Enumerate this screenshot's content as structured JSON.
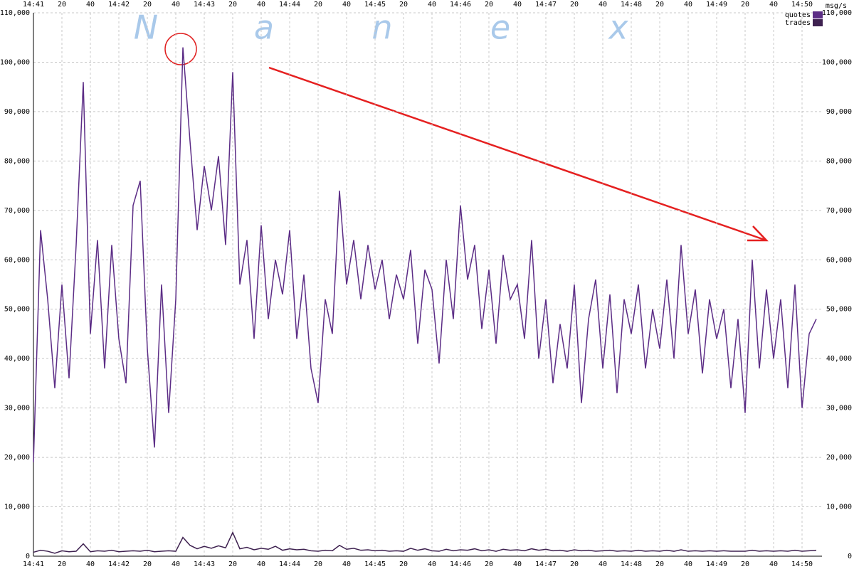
{
  "chart_data": {
    "type": "line",
    "y_label": "msg/s",
    "watermark": [
      "N",
      "a",
      "n",
      "e",
      "x"
    ],
    "x": [
      0,
      5,
      10,
      15,
      20,
      25,
      30,
      35,
      40,
      45,
      50,
      55,
      60,
      65,
      70,
      75,
      80,
      85,
      90,
      95,
      100,
      105,
      110,
      115,
      120,
      125,
      130,
      135,
      140,
      145,
      150,
      155,
      160,
      165,
      170,
      175,
      180,
      185,
      190,
      195,
      200,
      205,
      210,
      215,
      220,
      225,
      230,
      235,
      240,
      245,
      250,
      255,
      260,
      265,
      270,
      275,
      280,
      285,
      290,
      295,
      300,
      305,
      310,
      315,
      320,
      325,
      330,
      335,
      340,
      345,
      350,
      355,
      360,
      365,
      370,
      375,
      380,
      385,
      390,
      395,
      400,
      405,
      410,
      415,
      420,
      425,
      430,
      435,
      440,
      445,
      450,
      455,
      460,
      465,
      470,
      475,
      480,
      485,
      490,
      495,
      500,
      505,
      510,
      515,
      520,
      525,
      530,
      535,
      540,
      545,
      550
    ],
    "xlim": [
      0,
      554
    ],
    "xticks": [
      {
        "value": 0,
        "label": "14:41"
      },
      20,
      40,
      {
        "value": 60,
        "label": "14:42"
      },
      {
        "value": 80,
        "label": "20"
      },
      {
        "value": 100,
        "label": "40"
      },
      {
        "value": 120,
        "label": "14:43"
      },
      {
        "value": 140,
        "label": "20"
      },
      {
        "value": 160,
        "label": "40"
      },
      {
        "value": 180,
        "label": "14:44"
      },
      {
        "value": 200,
        "label": "20"
      },
      {
        "value": 220,
        "label": "40"
      },
      {
        "value": 240,
        "label": "14:45"
      },
      {
        "value": 260,
        "label": "20"
      },
      {
        "value": 280,
        "label": "40"
      },
      {
        "value": 300,
        "label": "14:46"
      },
      {
        "value": 320,
        "label": "20"
      },
      {
        "value": 340,
        "label": "40"
      },
      {
        "value": 360,
        "label": "14:47"
      },
      {
        "value": 380,
        "label": "20"
      },
      {
        "value": 400,
        "label": "40"
      },
      {
        "value": 420,
        "label": "14:48"
      },
      {
        "value": 440,
        "label": "20"
      },
      {
        "value": 460,
        "label": "40"
      },
      {
        "value": 480,
        "label": "14:49"
      },
      {
        "value": 500,
        "label": "20"
      },
      {
        "value": 520,
        "label": "40"
      },
      {
        "value": 540,
        "label": "14:50"
      }
    ],
    "ylim": [
      0,
      110000
    ],
    "yticks": [
      0,
      {
        "value": 10000,
        "label": "10,000"
      },
      {
        "value": 20000,
        "label": "20,000"
      },
      {
        "value": 30000,
        "label": "30,000"
      },
      {
        "value": 40000,
        "label": "40,000"
      },
      {
        "value": 50000,
        "label": "50,000"
      },
      {
        "value": 60000,
        "label": "60,000"
      },
      {
        "value": 70000,
        "label": "70,000"
      },
      {
        "value": 80000,
        "label": "80,000"
      },
      {
        "value": 90000,
        "label": "90,000"
      },
      {
        "value": 100000,
        "label": "100,000"
      },
      {
        "value": 110000,
        "label": "110,000"
      }
    ],
    "grid": true,
    "legend": "top-right",
    "series": [
      {
        "name": "quotes",
        "color": "#5c2d86",
        "values": [
          19000,
          66000,
          52000,
          34000,
          55000,
          36000,
          63000,
          96000,
          45000,
          64000,
          38000,
          63000,
          44000,
          35000,
          71000,
          76000,
          42000,
          22000,
          55000,
          29000,
          52000,
          103000,
          84000,
          66000,
          79000,
          70000,
          81000,
          63000,
          98000,
          55000,
          64000,
          44000,
          67000,
          48000,
          60000,
          53000,
          66000,
          44000,
          57000,
          38000,
          31000,
          52000,
          45000,
          74000,
          55000,
          64000,
          52000,
          63000,
          54000,
          60000,
          48000,
          57000,
          52000,
          62000,
          43000,
          58000,
          54000,
          39000,
          60000,
          48000,
          71000,
          56000,
          63000,
          46000,
          58000,
          43000,
          61000,
          52000,
          55000,
          44000,
          64000,
          40000,
          52000,
          35000,
          47000,
          38000,
          55000,
          31000,
          48000,
          56000,
          38000,
          53000,
          33000,
          52000,
          45000,
          55000,
          38000,
          50000,
          42000,
          56000,
          40000,
          63000,
          45000,
          54000,
          37000,
          52000,
          44000,
          50000,
          34000,
          48000,
          29000,
          60000,
          38000,
          54000,
          40000,
          52000,
          34000,
          55000,
          30000,
          45000,
          48000
        ]
      },
      {
        "name": "trades",
        "color": "#3e2150",
        "values": [
          800,
          1200,
          1000,
          600,
          1100,
          900,
          1000,
          2500,
          900,
          1100,
          1000,
          1200,
          900,
          1000,
          1100,
          1000,
          1200,
          900,
          1000,
          1100,
          1000,
          3800,
          2200,
          1500,
          2000,
          1600,
          2100,
          1700,
          4800,
          1500,
          1800,
          1300,
          1600,
          1400,
          2000,
          1200,
          1500,
          1300,
          1400,
          1100,
          1000,
          1200,
          1100,
          2200,
          1400,
          1600,
          1200,
          1300,
          1100,
          1200,
          1000,
          1100,
          1000,
          1600,
          1200,
          1500,
          1100,
          1000,
          1400,
          1100,
          1300,
          1200,
          1500,
          1100,
          1300,
          1000,
          1400,
          1200,
          1300,
          1100,
          1500,
          1200,
          1400,
          1100,
          1200,
          1000,
          1300,
          1100,
          1200,
          1000,
          1100,
          1200,
          1000,
          1100,
          1000,
          1200,
          1000,
          1100,
          1000,
          1200,
          1000,
          1300,
          1000,
          1100,
          1000,
          1100,
          1000,
          1100,
          1000,
          1000,
          1000,
          1200,
          1000,
          1100,
          1000,
          1100,
          1000,
          1200,
          1000,
          1100,
          1200
        ]
      }
    ]
  }
}
